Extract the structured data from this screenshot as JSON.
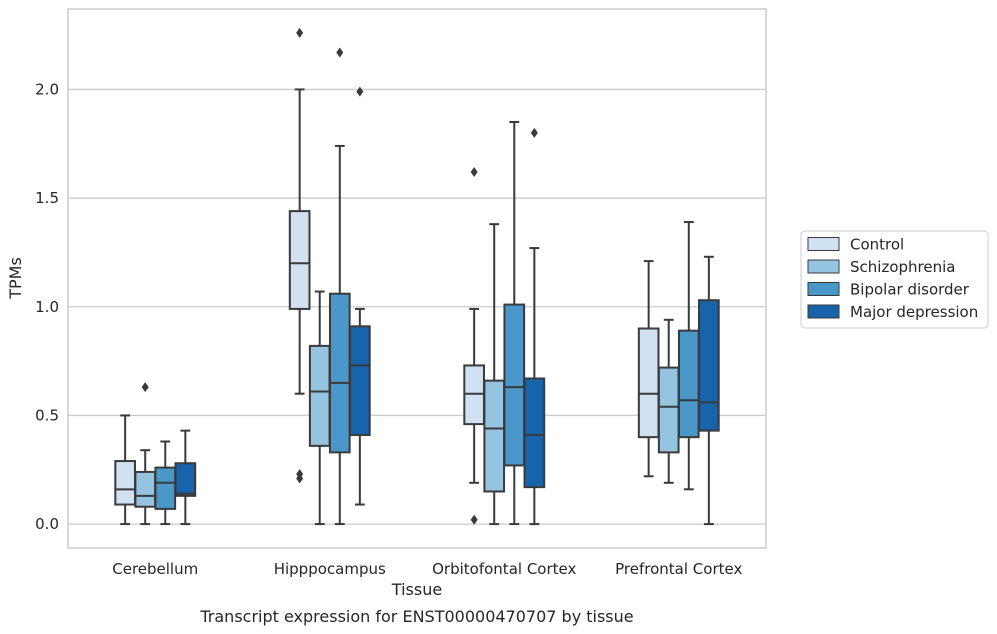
{
  "chart_data": {
    "type": "boxplot",
    "caption": "Transcript expression for ENST00000470707 by tissue",
    "xlabel": "Tissue",
    "ylabel": "TPMs",
    "ylim": [
      -0.11,
      2.37
    ],
    "yticks": [
      0.0,
      0.5,
      1.0,
      1.5,
      2.0
    ],
    "ytick_labels": [
      "0.0",
      "0.5",
      "1.0",
      "1.5",
      "2.0"
    ],
    "grid": "horizontal",
    "legend_position": "right",
    "categories": [
      "Cerebellum",
      "Hipppocampus",
      "Orbitofontal Cortex",
      "Prefrontal Cortex"
    ],
    "series": [
      {
        "name": "Control",
        "color": "#d0e1f2",
        "boxes": [
          {
            "whislo": 0.0,
            "q1": 0.09,
            "med": 0.16,
            "q3": 0.29,
            "whishi": 0.5,
            "fliers": []
          },
          {
            "whislo": 0.6,
            "q1": 0.99,
            "med": 1.2,
            "q3": 1.44,
            "whishi": 2.0,
            "fliers": [
              2.26,
              0.23,
              0.21
            ]
          },
          {
            "whislo": 0.19,
            "q1": 0.46,
            "med": 0.6,
            "q3": 0.73,
            "whishi": 0.99,
            "fliers": [
              1.62,
              0.02
            ]
          },
          {
            "whislo": 0.22,
            "q1": 0.4,
            "med": 0.6,
            "q3": 0.9,
            "whishi": 1.21,
            "fliers": []
          }
        ]
      },
      {
        "name": "Schizophrenia",
        "color": "#94c4df",
        "boxes": [
          {
            "whislo": 0.0,
            "q1": 0.08,
            "med": 0.13,
            "q3": 0.24,
            "whishi": 0.34,
            "fliers": [
              0.63
            ]
          },
          {
            "whislo": 0.0,
            "q1": 0.36,
            "med": 0.61,
            "q3": 0.82,
            "whishi": 1.07,
            "fliers": []
          },
          {
            "whislo": 0.0,
            "q1": 0.15,
            "med": 0.44,
            "q3": 0.66,
            "whishi": 1.38,
            "fliers": []
          },
          {
            "whislo": 0.19,
            "q1": 0.33,
            "med": 0.54,
            "q3": 0.72,
            "whishi": 0.94,
            "fliers": []
          }
        ]
      },
      {
        "name": "Bipolar disorder",
        "color": "#4a98c9",
        "boxes": [
          {
            "whislo": 0.0,
            "q1": 0.07,
            "med": 0.19,
            "q3": 0.26,
            "whishi": 0.38,
            "fliers": []
          },
          {
            "whislo": 0.0,
            "q1": 0.33,
            "med": 0.65,
            "q3": 1.06,
            "whishi": 1.74,
            "fliers": [
              2.17
            ]
          },
          {
            "whislo": 0.0,
            "q1": 0.27,
            "med": 0.63,
            "q3": 1.01,
            "whishi": 1.85,
            "fliers": []
          },
          {
            "whislo": 0.16,
            "q1": 0.4,
            "med": 0.57,
            "q3": 0.89,
            "whishi": 1.39,
            "fliers": []
          }
        ]
      },
      {
        "name": "Major depression",
        "color": "#1764ab",
        "boxes": [
          {
            "whislo": 0.0,
            "q1": 0.13,
            "med": 0.14,
            "q3": 0.28,
            "whishi": 0.43,
            "fliers": []
          },
          {
            "whislo": 0.09,
            "q1": 0.41,
            "med": 0.73,
            "q3": 0.91,
            "whishi": 0.99,
            "fliers": [
              1.99
            ]
          },
          {
            "whislo": 0.0,
            "q1": 0.17,
            "med": 0.41,
            "q3": 0.67,
            "whishi": 1.27,
            "fliers": [
              1.8
            ]
          },
          {
            "whislo": 0.0,
            "q1": 0.43,
            "med": 0.56,
            "q3": 1.03,
            "whishi": 1.23,
            "fliers": []
          }
        ]
      }
    ],
    "colors": {
      "grid": "#cccccc",
      "frame": "#cccccc",
      "line": "#3a3a3a",
      "legend_border": "#cccccc"
    }
  }
}
